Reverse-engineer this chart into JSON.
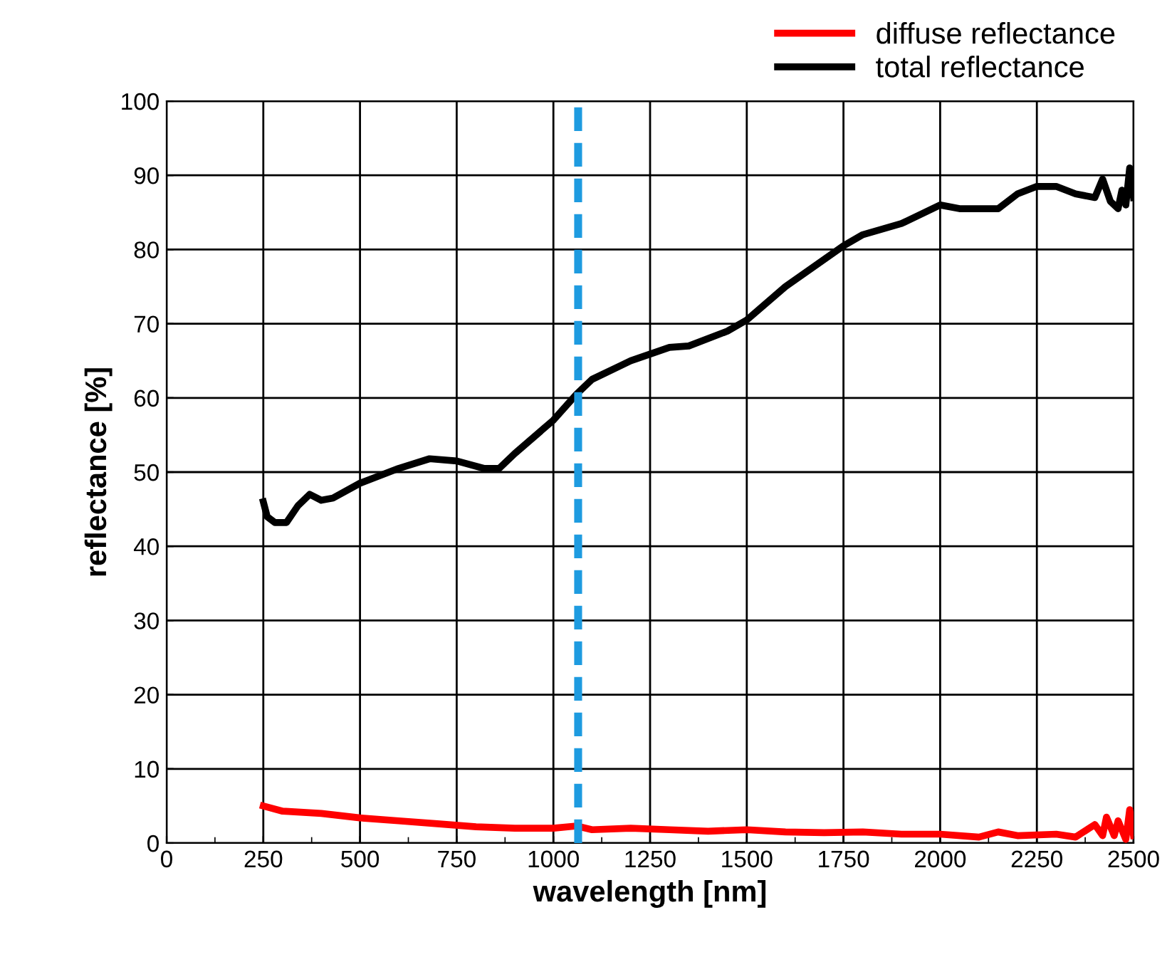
{
  "chart_data": {
    "type": "line",
    "xlabel": "wavelength [nm]",
    "ylabel": "reflectance [%]",
    "xlim": [
      0,
      2500
    ],
    "ylim": [
      0,
      100
    ],
    "xticks": [
      0,
      250,
      500,
      750,
      1000,
      1250,
      1500,
      1750,
      2000,
      2250,
      2500
    ],
    "yticks": [
      0,
      10,
      20,
      30,
      40,
      50,
      60,
      70,
      80,
      90,
      100
    ],
    "grid": true,
    "legend": "top right",
    "marker": "none",
    "line_style": "solid",
    "series": [
      {
        "name": "diffuse reflectance",
        "color": "#ff0000",
        "x": [
          250,
          300,
          400,
          500,
          600,
          700,
          800,
          900,
          1000,
          1060,
          1100,
          1200,
          1300,
          1400,
          1500,
          1600,
          1700,
          1800,
          1900,
          2000,
          2100,
          2150,
          2200,
          2300,
          2350,
          2400,
          2420,
          2430,
          2450,
          2460,
          2480,
          2490,
          2500
        ],
        "values": [
          5,
          4.3,
          4,
          3.4,
          3,
          2.6,
          2.2,
          2,
          2,
          2.3,
          1.8,
          2,
          1.8,
          1.6,
          1.8,
          1.5,
          1.4,
          1.5,
          1.2,
          1.2,
          0.8,
          1.5,
          1,
          1.2,
          0.8,
          2.5,
          1,
          3.5,
          1,
          3,
          0.5,
          4.5,
          1
        ]
      },
      {
        "name": "total reflectance",
        "color": "#000000",
        "x": [
          250,
          260,
          280,
          310,
          340,
          370,
          400,
          430,
          500,
          600,
          680,
          750,
          820,
          860,
          900,
          1000,
          1060,
          1100,
          1200,
          1300,
          1350,
          1450,
          1500,
          1600,
          1750,
          1800,
          1900,
          2000,
          2050,
          2100,
          2150,
          2200,
          2250,
          2300,
          2350,
          2400,
          2420,
          2440,
          2460,
          2470,
          2480,
          2490,
          2500
        ],
        "values": [
          46,
          44,
          43.2,
          43.2,
          45.5,
          47,
          46.2,
          46.5,
          48.5,
          50.5,
          51.8,
          51.5,
          50.5,
          50.5,
          52.5,
          57,
          60.5,
          62.5,
          65,
          66.8,
          67,
          69,
          70.5,
          75,
          80.5,
          82,
          83.5,
          86,
          85.5,
          85.5,
          85.5,
          87.5,
          88.5,
          88.5,
          87.5,
          87,
          89.5,
          86.5,
          85.5,
          88,
          86,
          91,
          87
        ]
      }
    ],
    "ref_lines": [
      {
        "axis": "x",
        "value": 1064,
        "label": null,
        "color": "#1e9be0",
        "line_style": "dashed"
      }
    ]
  }
}
